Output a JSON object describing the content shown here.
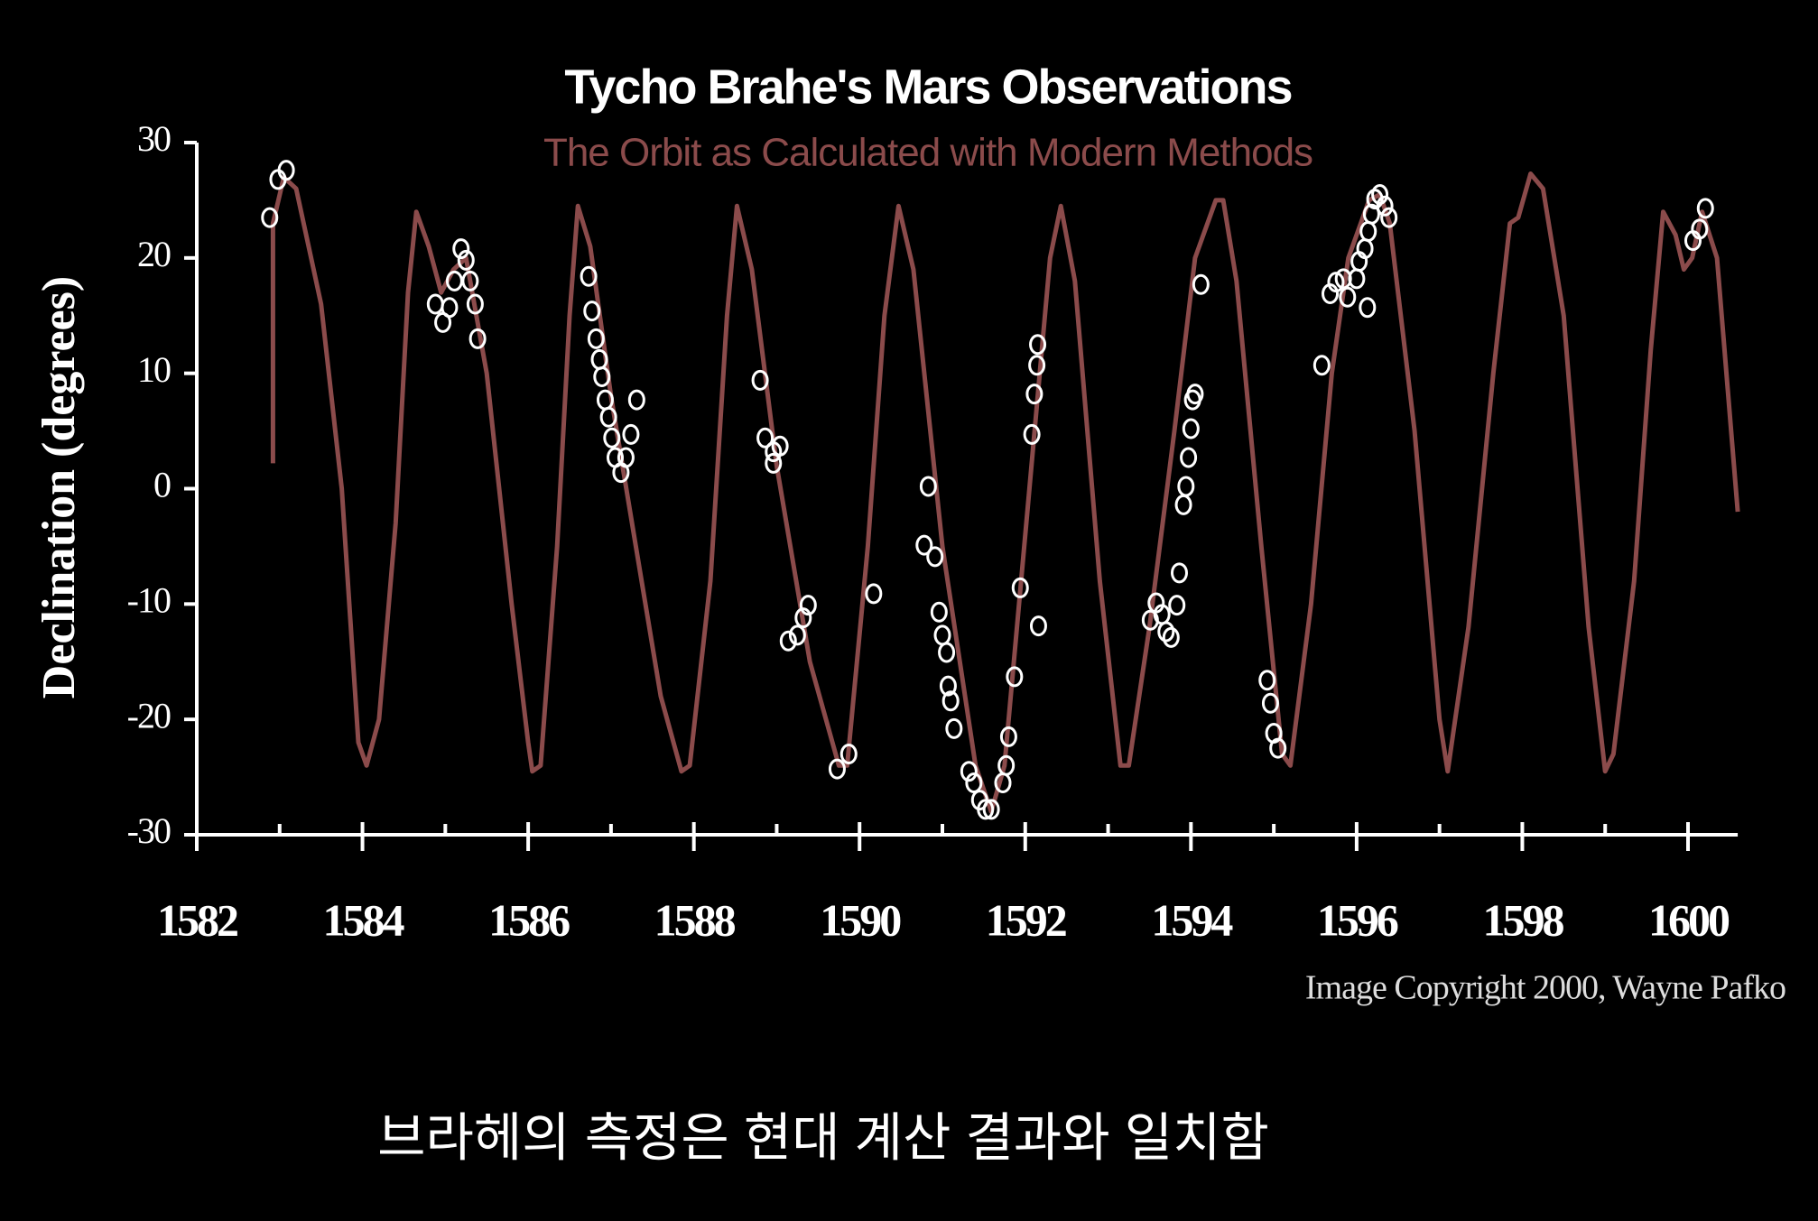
{
  "chart_data": {
    "type": "scatter",
    "title": "Tycho Brahe's Mars Observations",
    "subtitle": "The Orbit as Calculated with Modern Methods",
    "y_label": "Declination (degrees)",
    "annotation": "Image Copyright 2000, Wayne Pafko",
    "xlim": [
      1582,
      1600.6
    ],
    "xticks": [
      1582,
      1584,
      1586,
      1588,
      1590,
      1592,
      1594,
      1596,
      1598,
      1600
    ],
    "xminorticks": [
      1583,
      1585,
      1587,
      1589,
      1591,
      1593,
      1595,
      1597,
      1599
    ],
    "ylim": [
      -30,
      30
    ],
    "yticks": [
      -30,
      -20,
      -10,
      0,
      10,
      20,
      30
    ],
    "series": [
      {
        "type": "line",
        "color": "#8b4b4b",
        "x": [
          1582.92,
          1582.92,
          1583.05,
          1583.2,
          1583.5,
          1583.75,
          1583.95,
          1584.05,
          1584.2,
          1584.4,
          1584.55,
          1584.65,
          1584.8,
          1584.95,
          1585.1,
          1585.25,
          1585.5,
          1585.8,
          1586.0,
          1586.05,
          1586.15,
          1586.35,
          1586.5,
          1586.6,
          1586.75,
          1587.0,
          1587.3,
          1587.6,
          1587.85,
          1587.95,
          1588.2,
          1588.4,
          1588.52,
          1588.7,
          1589.0,
          1589.4,
          1589.75,
          1589.85,
          1590.1,
          1590.3,
          1590.47,
          1590.65,
          1591.0,
          1591.4,
          1591.59,
          1591.75,
          1592.05,
          1592.3,
          1592.43,
          1592.6,
          1592.9,
          1593.15,
          1593.25,
          1593.5,
          1593.8,
          1594.05,
          1594.3,
          1594.39,
          1594.55,
          1594.85,
          1595.1,
          1595.2,
          1595.45,
          1595.7,
          1595.9,
          1596.15,
          1596.28,
          1596.4,
          1596.7,
          1597.0,
          1597.1,
          1597.35,
          1597.65,
          1597.85,
          1597.95,
          1598.1,
          1598.25,
          1598.5,
          1598.8,
          1599.0,
          1599.1,
          1599.35,
          1599.55,
          1599.7,
          1599.85,
          1599.95,
          1600.05,
          1600.17,
          1600.35,
          1600.6
        ],
        "values": [
          2.2,
          23,
          27,
          26,
          16,
          0,
          -22,
          -24,
          -20,
          -3,
          17,
          24,
          21,
          17,
          19,
          20,
          10,
          -10,
          -22,
          -24.5,
          -24,
          -5,
          15,
          24.5,
          21,
          8,
          -5,
          -18,
          -24.5,
          -24,
          -8,
          15,
          24.5,
          19,
          2,
          -15,
          -24,
          -24,
          -5,
          15,
          24.5,
          19,
          -5,
          -24,
          -28,
          -24,
          0,
          20,
          24.5,
          18,
          -8,
          -24,
          -24,
          -12,
          5,
          20,
          25,
          25,
          18,
          -5,
          -23,
          -24,
          -10,
          10,
          20,
          25,
          25.5,
          23,
          5,
          -20,
          -24.5,
          -12,
          10,
          23,
          23.5,
          27.3,
          26,
          15,
          -12,
          -24.5,
          -23,
          -8,
          12,
          24,
          22,
          19,
          20,
          24,
          20,
          -2
        ]
      },
      {
        "type": "scatter",
        "color": "#ffffff",
        "x": [
          1582.88,
          1582.98,
          1583.08,
          1584.88,
          1584.97,
          1585.05,
          1585.11,
          1585.19,
          1585.25,
          1585.3,
          1585.36,
          1585.39,
          1586.73,
          1586.77,
          1586.82,
          1586.86,
          1586.89,
          1586.93,
          1586.97,
          1587.01,
          1587.05,
          1587.12,
          1587.18,
          1587.24,
          1587.31,
          1588.8,
          1588.86,
          1588.96,
          1589.04,
          1588.96,
          1589.14,
          1589.25,
          1589.32,
          1589.38,
          1589.73,
          1589.87,
          1590.17,
          1590.78,
          1590.83,
          1590.91,
          1590.96,
          1591.0,
          1591.05,
          1591.07,
          1591.1,
          1591.14,
          1591.32,
          1591.38,
          1591.45,
          1591.52,
          1591.59,
          1591.73,
          1591.77,
          1591.8,
          1591.87,
          1591.94,
          1592.08,
          1592.11,
          1592.14,
          1592.15,
          1592.16,
          1593.51,
          1593.58,
          1593.65,
          1593.7,
          1593.76,
          1593.83,
          1593.86,
          1593.91,
          1593.94,
          1593.97,
          1594.0,
          1594.02,
          1594.05,
          1594.12,
          1594.92,
          1594.96,
          1595.0,
          1595.05,
          1595.58,
          1595.68,
          1595.75,
          1595.84,
          1595.89,
          1596.0,
          1596.03,
          1596.1,
          1596.13,
          1596.14,
          1596.18,
          1596.22,
          1596.28,
          1596.34,
          1596.39,
          1600.06,
          1600.14,
          1600.21
        ],
        "values": [
          23.5,
          26.8,
          27.6,
          16.0,
          14.4,
          15.7,
          18.0,
          20.8,
          19.8,
          18.0,
          16.0,
          13.0,
          18.4,
          15.4,
          13.0,
          11.2,
          9.7,
          7.7,
          6.2,
          4.4,
          2.7,
          1.4,
          2.7,
          4.7,
          7.7,
          9.4,
          4.4,
          3.2,
          3.7,
          2.2,
          -13.2,
          -12.7,
          -11.2,
          -10.1,
          -24.3,
          -23.0,
          -9.1,
          -4.9,
          0.2,
          -5.9,
          -10.7,
          -12.7,
          -14.2,
          -17.1,
          -18.4,
          -20.8,
          -24.5,
          -25.5,
          -27.0,
          -27.8,
          -27.8,
          -25.5,
          -24.0,
          -21.5,
          -16.3,
          -8.6,
          4.7,
          8.2,
          10.7,
          12.5,
          -11.9,
          -11.4,
          -9.9,
          -10.9,
          -12.4,
          -12.9,
          -10.1,
          -7.3,
          -1.4,
          0.2,
          2.7,
          5.2,
          7.7,
          8.2,
          17.7,
          -16.6,
          -18.6,
          -21.2,
          -22.5,
          10.7,
          16.9,
          17.9,
          18.2,
          16.6,
          18.2,
          19.7,
          20.8,
          15.7,
          22.3,
          23.8,
          25.1,
          25.5,
          24.5,
          23.5,
          21.5,
          22.5,
          24.3
        ]
      }
    ]
  },
  "caption": "브라헤의 측정은 현대 계산 결과와 일치함"
}
